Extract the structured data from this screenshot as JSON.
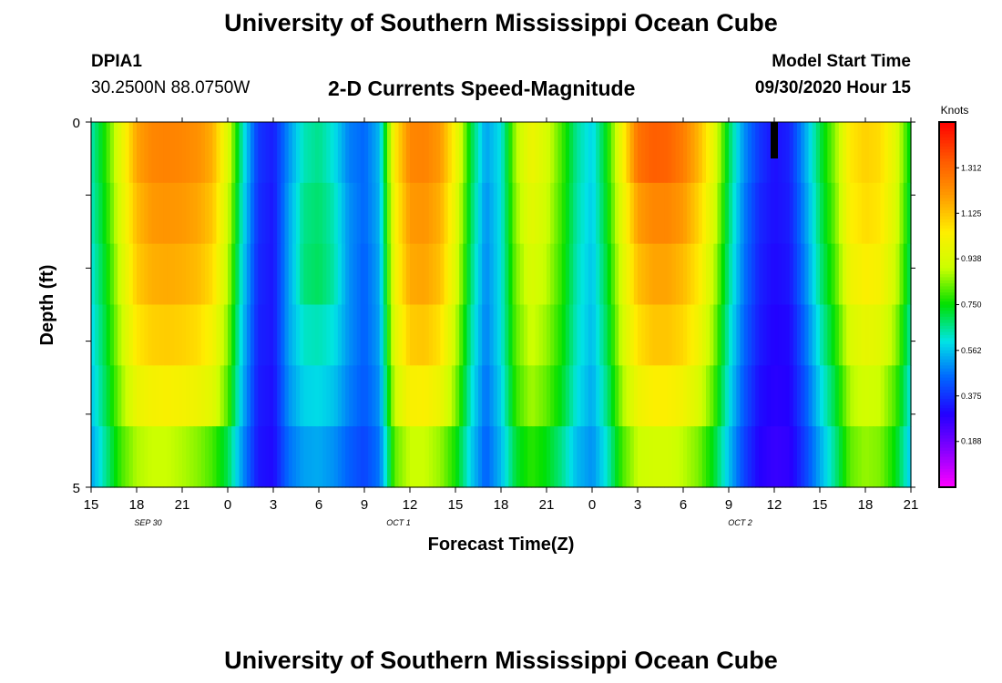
{
  "header": {
    "title": "University of Southern Mississippi Ocean Cube",
    "station_id": "DPIA1",
    "coordinates": "30.2500N 88.0750W",
    "subtitle": "2-D Currents Speed-Magnitude",
    "model_start_label": "Model Start Time",
    "model_start_value": "09/30/2020 Hour 15"
  },
  "footer": {
    "title": "University of Southern Mississippi Ocean Cube"
  },
  "chart_data": {
    "type": "heatmap",
    "xlabel": "Forecast Time(Z)",
    "ylabel": "Depth (ft)",
    "x_tick_labels": [
      "15",
      "18",
      "21",
      "0",
      "3",
      "6",
      "9",
      "12",
      "15",
      "18",
      "21",
      "0",
      "3",
      "6",
      "9",
      "12",
      "15",
      "18",
      "21"
    ],
    "date_labels": [
      {
        "text": "SEP 30",
        "tick_index": 1
      },
      {
        "text": "OCT 1",
        "tick_index": 6.5
      },
      {
        "text": "OCT 2",
        "tick_index": 14
      }
    ],
    "y_tick_labels": [
      "0",
      "5"
    ],
    "ylim": [
      0,
      5
    ],
    "x_range_hours": [
      0,
      54
    ],
    "colorbar": {
      "title": "Knots",
      "tick_labels": [
        "1.312",
        "1.125",
        "0.938",
        "0.750",
        "0.562",
        "0.375",
        "0.188"
      ],
      "ticks": [
        1.312,
        1.125,
        0.938,
        0.75,
        0.562,
        0.375,
        0.188
      ],
      "range": [
        0,
        1.5
      ],
      "palette": [
        "#ff00ff",
        "#8800ff",
        "#2200ff",
        "#0066ff",
        "#00e5e5",
        "#00e000",
        "#ccff00",
        "#ffee00",
        "#ff9900",
        "#ff5500",
        "#ff0000"
      ]
    },
    "current_time_marker_hour": 45,
    "depth_rows": 5,
    "key_times_hours": [
      0,
      1,
      2,
      3,
      4,
      5,
      6,
      7,
      8,
      9,
      10,
      11,
      12,
      13,
      14,
      15,
      16,
      17,
      18,
      19,
      20,
      21,
      22,
      23,
      24,
      25,
      26,
      27,
      28,
      29,
      30,
      31,
      32,
      33,
      34,
      35,
      36,
      37,
      38,
      39,
      40,
      41,
      42,
      43,
      44,
      45,
      46,
      47,
      48,
      49,
      50,
      51,
      52,
      53,
      54
    ],
    "values": [
      [
        0.63,
        0.78,
        0.98,
        1.18,
        1.24,
        1.25,
        1.24,
        1.22,
        1.16,
        0.95,
        0.62,
        0.38,
        0.34,
        0.5,
        0.63,
        0.66,
        0.6,
        0.48,
        0.45,
        0.55,
        1.05,
        1.24,
        1.25,
        1.2,
        1.02,
        0.72,
        0.52,
        0.6,
        0.88,
        1.0,
        0.93,
        0.8,
        0.65,
        0.58,
        0.75,
        1.02,
        1.28,
        1.33,
        1.32,
        1.26,
        1.15,
        0.98,
        0.7,
        0.5,
        0.38,
        0.32,
        0.35,
        0.52,
        0.7,
        0.85,
        1.06,
        1.1,
        1.08,
        0.96,
        0.72
      ],
      [
        0.62,
        0.76,
        0.96,
        1.14,
        1.2,
        1.21,
        1.2,
        1.18,
        1.12,
        0.92,
        0.6,
        0.37,
        0.33,
        0.52,
        0.66,
        0.68,
        0.63,
        0.5,
        0.45,
        0.54,
        1.02,
        1.2,
        1.21,
        1.16,
        0.98,
        0.7,
        0.5,
        0.6,
        0.86,
        0.97,
        0.91,
        0.79,
        0.64,
        0.57,
        0.74,
        0.98,
        1.19,
        1.24,
        1.24,
        1.2,
        1.1,
        0.94,
        0.68,
        0.48,
        0.36,
        0.32,
        0.34,
        0.5,
        0.68,
        0.83,
        1.04,
        1.08,
        1.06,
        0.94,
        0.7
      ],
      [
        0.6,
        0.74,
        0.93,
        1.11,
        1.16,
        1.17,
        1.16,
        1.14,
        1.08,
        0.89,
        0.58,
        0.36,
        0.33,
        0.52,
        0.67,
        0.69,
        0.64,
        0.5,
        0.44,
        0.53,
        1.0,
        1.17,
        1.18,
        1.13,
        0.95,
        0.68,
        0.49,
        0.6,
        0.84,
        0.94,
        0.89,
        0.78,
        0.63,
        0.56,
        0.72,
        0.95,
        1.13,
        1.18,
        1.18,
        1.14,
        1.06,
        0.9,
        0.66,
        0.47,
        0.35,
        0.31,
        0.33,
        0.48,
        0.66,
        0.8,
        1.0,
        1.04,
        1.02,
        0.91,
        0.68
      ],
      [
        0.58,
        0.72,
        0.9,
        1.06,
        1.1,
        1.11,
        1.1,
        1.08,
        1.02,
        0.85,
        0.56,
        0.35,
        0.33,
        0.52,
        0.62,
        0.63,
        0.6,
        0.5,
        0.44,
        0.52,
        0.96,
        1.11,
        1.12,
        1.07,
        0.9,
        0.65,
        0.48,
        0.6,
        0.82,
        0.91,
        0.86,
        0.76,
        0.62,
        0.55,
        0.7,
        0.92,
        1.07,
        1.12,
        1.12,
        1.09,
        1.01,
        0.86,
        0.63,
        0.45,
        0.34,
        0.3,
        0.31,
        0.45,
        0.62,
        0.76,
        0.94,
        0.98,
        0.96,
        0.86,
        0.64
      ],
      [
        0.56,
        0.7,
        0.86,
        0.99,
        1.02,
        1.03,
        1.02,
        1.0,
        0.96,
        0.81,
        0.54,
        0.34,
        0.32,
        0.5,
        0.58,
        0.59,
        0.56,
        0.48,
        0.43,
        0.5,
        0.91,
        1.03,
        1.04,
        0.99,
        0.85,
        0.62,
        0.46,
        0.58,
        0.79,
        0.87,
        0.82,
        0.73,
        0.6,
        0.53,
        0.67,
        0.87,
        1.0,
        1.04,
        1.04,
        1.01,
        0.94,
        0.81,
        0.6,
        0.43,
        0.32,
        0.29,
        0.3,
        0.42,
        0.58,
        0.71,
        0.88,
        0.92,
        0.9,
        0.8,
        0.6
      ],
      [
        0.52,
        0.66,
        0.8,
        0.88,
        0.9,
        0.9,
        0.88,
        0.85,
        0.8,
        0.7,
        0.5,
        0.33,
        0.31,
        0.46,
        0.52,
        0.53,
        0.5,
        0.44,
        0.4,
        0.47,
        0.82,
        0.9,
        0.9,
        0.86,
        0.76,
        0.58,
        0.44,
        0.55,
        0.72,
        0.78,
        0.74,
        0.66,
        0.55,
        0.5,
        0.62,
        0.8,
        0.9,
        0.92,
        0.92,
        0.89,
        0.84,
        0.73,
        0.56,
        0.4,
        0.3,
        0.27,
        0.28,
        0.39,
        0.53,
        0.66,
        0.82,
        0.86,
        0.84,
        0.74,
        0.56
      ]
    ]
  }
}
